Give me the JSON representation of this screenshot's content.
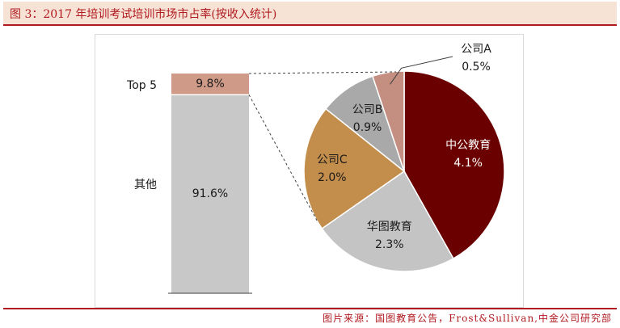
{
  "header": {
    "title": "图 3：2017 年培训考试培训市场市占率(按收入统计)"
  },
  "footer": {
    "source": "图片来源：国图教育公告，Frost&Sullivan,中金公司研究部"
  },
  "colors": {
    "title_band": "#f7e3d6",
    "accent": "#b0191f",
    "other_bar": "#c8c8c8",
    "top5_bar": "#d09a88",
    "slice_zhonggong": "#6b0000",
    "slice_huatu": "#c4c4c4",
    "slice_c": "#c38d4c",
    "slice_b": "#a9a9a9",
    "slice_a": "#c48e80"
  },
  "chart_data": [
    {
      "type": "bar",
      "stacked": true,
      "categories": [
        "其他",
        "Top 5"
      ],
      "values": [
        91.6,
        9.8
      ],
      "data_labels": [
        "91.6%",
        "9.8%"
      ],
      "unit": "%"
    },
    {
      "type": "pie",
      "labels": [
        "中公教育",
        "华图教育",
        "公司C",
        "公司B",
        "公司A"
      ],
      "values": [
        4.1,
        2.3,
        2.0,
        0.9,
        0.5
      ],
      "data_labels": [
        "4.1%",
        "2.3%",
        "2.0%",
        "0.9%",
        "0.5%"
      ],
      "unit": "%"
    }
  ]
}
